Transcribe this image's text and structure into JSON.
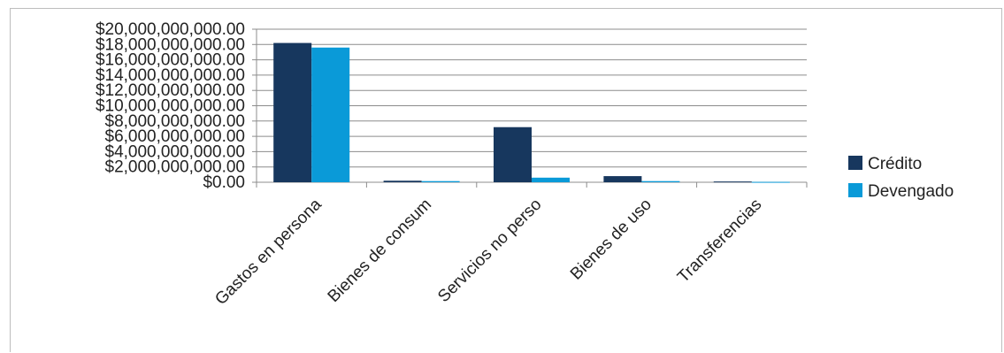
{
  "chart_data": {
    "type": "bar",
    "categories": [
      "Gastos en persona",
      "Bienes de consum",
      "Servicios no perso",
      "Bienes de uso",
      "Transferencias"
    ],
    "series": [
      {
        "name": "Crédito",
        "color": "#17375e",
        "values": [
          18200000000,
          200000000,
          7200000000,
          800000000,
          100000000
        ]
      },
      {
        "name": "Devengado",
        "color": "#0a9ad8",
        "values": [
          17600000000,
          150000000,
          600000000,
          150000000,
          50000000
        ]
      }
    ],
    "ylim": [
      0,
      20000000000
    ],
    "yticks": [
      "$0.00",
      "$2,000,000,000.00",
      "$4,000,000,000.00",
      "$6,000,000,000.00",
      "$8,000,000,000.00",
      "$10,000,000,000.00",
      "$12,000,000,000.00",
      "$14,000,000,000.00",
      "$16,000,000,000.00",
      "$18,000,000,000.00",
      "$20,000,000,000.00"
    ],
    "grid": true,
    "legend": "right",
    "title": "",
    "xlabel": "",
    "ylabel": ""
  }
}
